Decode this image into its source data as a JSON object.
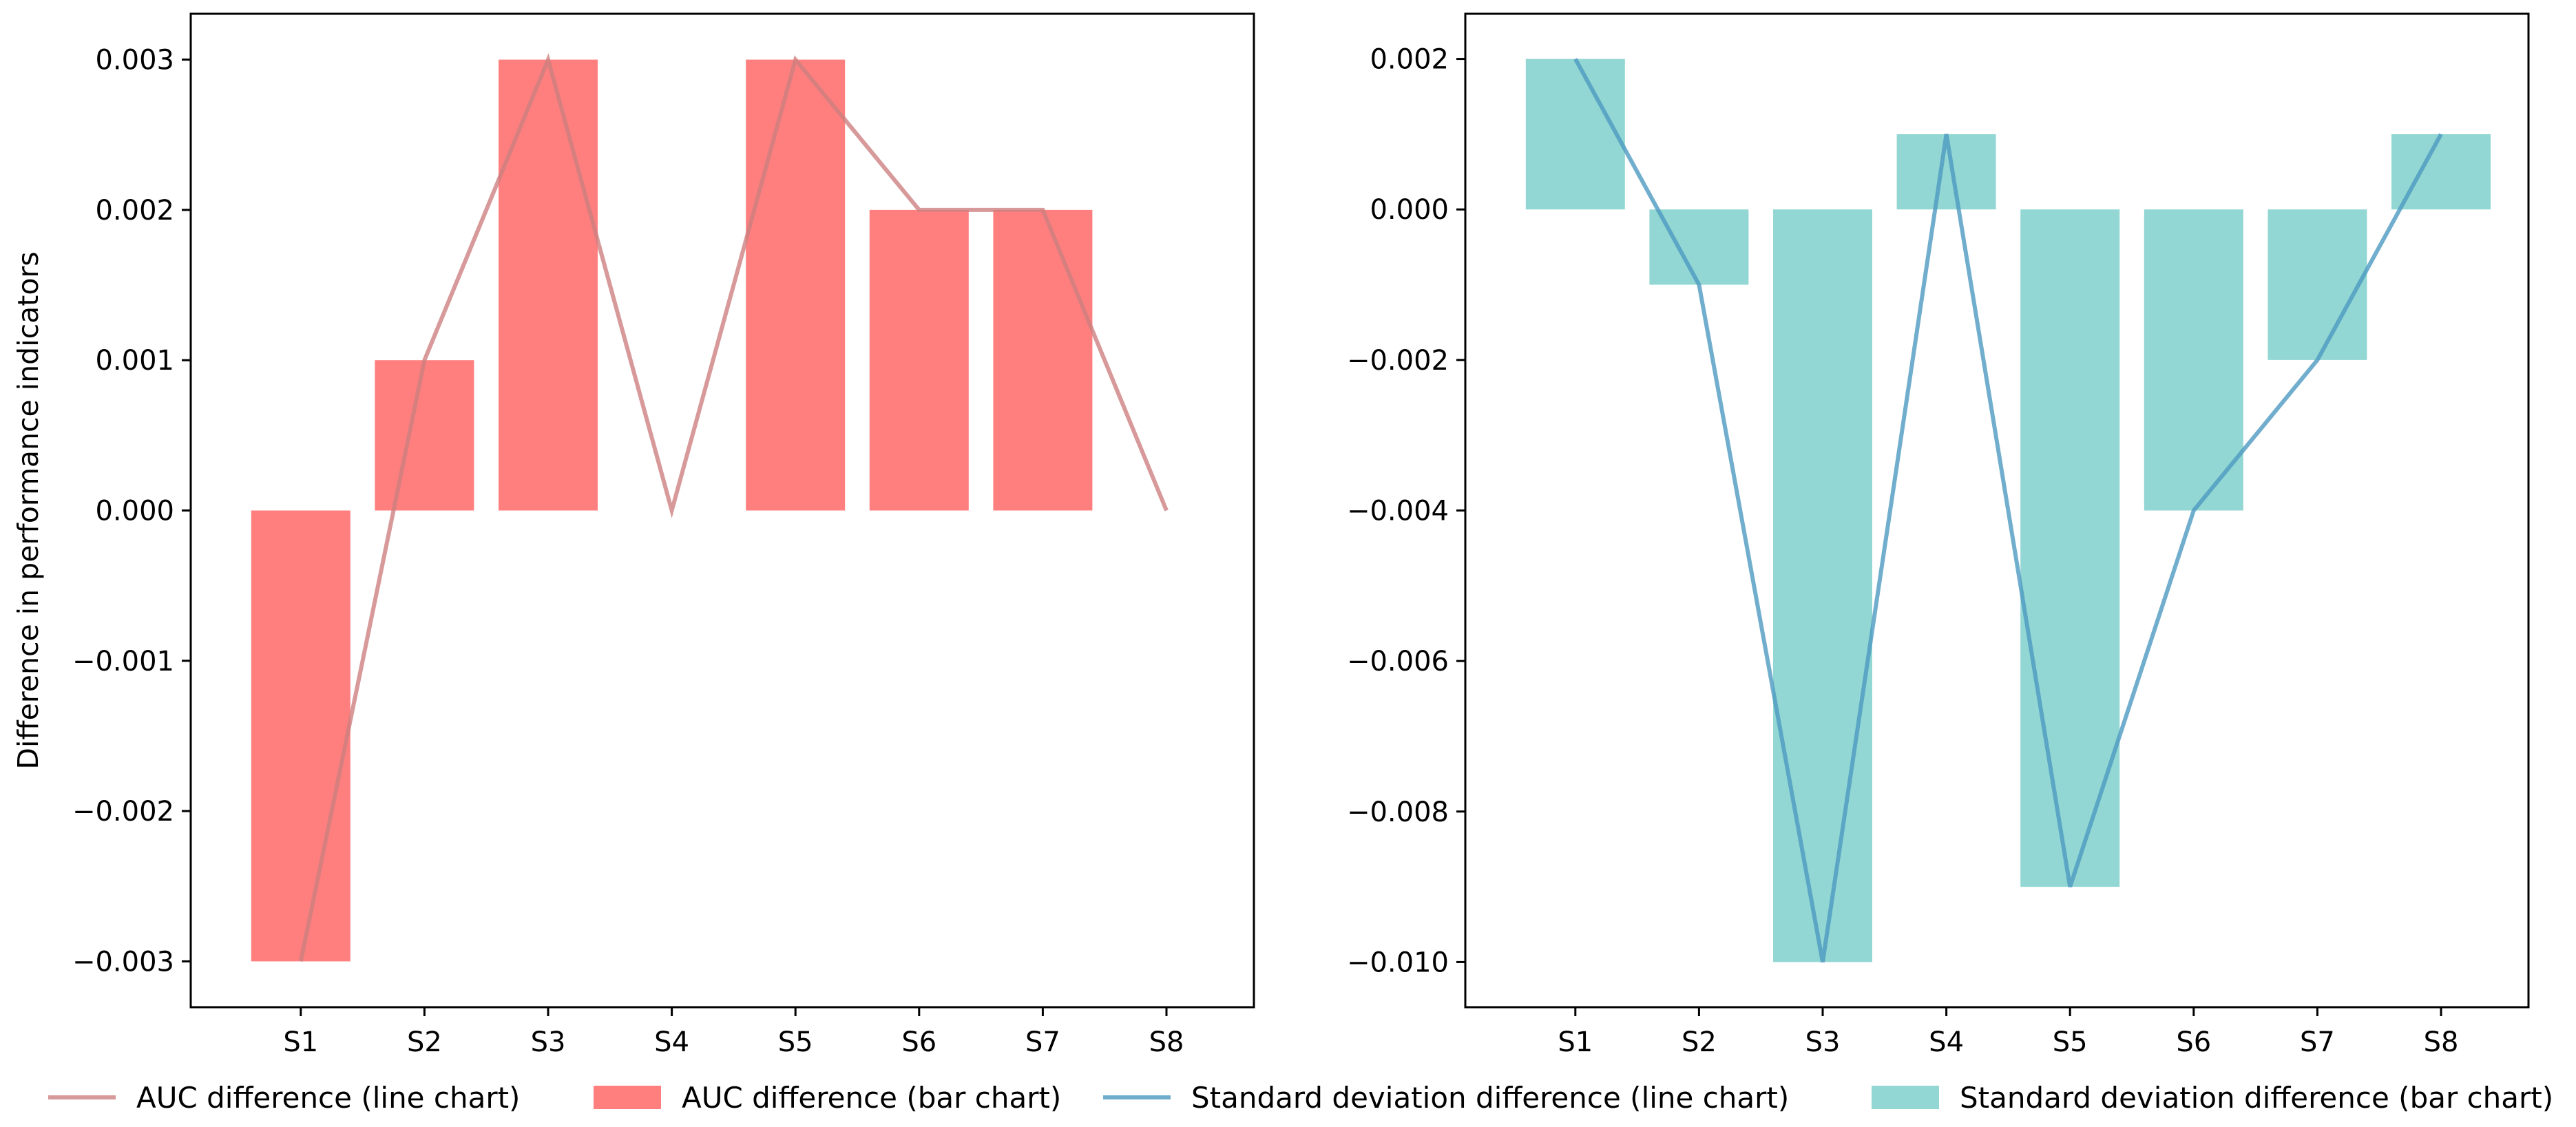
{
  "chart_data": [
    {
      "type": "bar",
      "categories": [
        "S1",
        "S2",
        "S3",
        "S4",
        "S5",
        "S6",
        "S7",
        "S8"
      ],
      "series": [
        {
          "name": "AUC difference (bar chart)",
          "kind": "bar",
          "values": [
            -0.003,
            0.001,
            0.003,
            0.0,
            0.003,
            0.002,
            0.002,
            0.0
          ]
        },
        {
          "name": "AUC difference (line chart)",
          "kind": "line",
          "values": [
            -0.003,
            0.001,
            0.003,
            0.0,
            0.003,
            0.002,
            0.002,
            0.0
          ]
        }
      ],
      "ylabel": "Difference in performance indicators",
      "ylim": [
        -0.003305,
        0.003305
      ],
      "yticks": [
        -0.003,
        -0.002,
        -0.001,
        0.0,
        0.001,
        0.002,
        0.003
      ],
      "ytick_labels": [
        "−0.003",
        "−0.002",
        "−0.001",
        "0.000",
        "0.001",
        "0.002",
        "0.003"
      ],
      "bar_color": "#ff7f7f",
      "line_color": "#cd7f7f"
    },
    {
      "type": "bar",
      "categories": [
        "S1",
        "S2",
        "S3",
        "S4",
        "S5",
        "S6",
        "S7",
        "S8"
      ],
      "series": [
        {
          "name": "Standard deviation difference (bar chart)",
          "kind": "bar",
          "values": [
            0.002,
            -0.001,
            -0.01,
            0.001,
            -0.009,
            -0.004,
            -0.002,
            0.001
          ]
        },
        {
          "name": "Standard deviation difference (line chart)",
          "kind": "line",
          "values": [
            0.002,
            -0.001,
            -0.01,
            0.001,
            -0.009,
            -0.004,
            -0.002,
            0.001
          ]
        }
      ],
      "ylabel": "",
      "ylim": [
        -0.0106,
        0.0026
      ],
      "yticks": [
        -0.01,
        -0.008,
        -0.006,
        -0.004,
        -0.002,
        0.0,
        0.002
      ],
      "ytick_labels": [
        "−0.010",
        "−0.008",
        "−0.006",
        "−0.004",
        "−0.002",
        "0.000",
        "0.002"
      ],
      "bar_color": "#92d7d3",
      "line_color": "#4e9ac2"
    }
  ],
  "legend": [
    {
      "label": "AUC difference (line chart)",
      "kind": "line",
      "color": "#cd7f7f"
    },
    {
      "label": "AUC difference (bar chart)",
      "kind": "bar",
      "color": "#ff7f7f"
    },
    {
      "label": "Standard deviation difference (line chart)",
      "kind": "line",
      "color": "#4e9ac2"
    },
    {
      "label": "Standard deviation difference (bar chart)",
      "kind": "bar",
      "color": "#92d7d3"
    }
  ]
}
